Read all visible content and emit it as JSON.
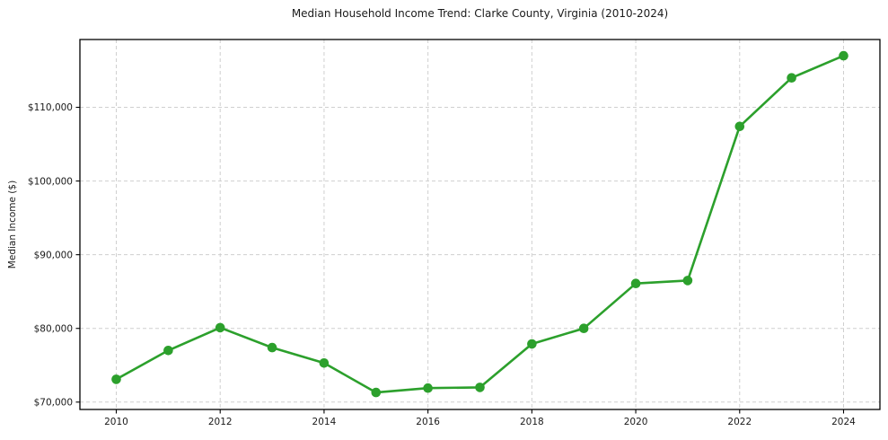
{
  "figure": {
    "background": "#ffffff",
    "text_color": "#1a1a1a"
  },
  "chart_data": {
    "type": "line",
    "title": "Median Household Income Trend: Clarke County, Virginia (2010-2024)",
    "xlabel": "",
    "ylabel": "Median Income ($)",
    "series": [
      {
        "name": "Median household income",
        "color": "#2ca02c",
        "marker": "circle",
        "x": [
          2010,
          2011,
          2012,
          2013,
          2014,
          2015,
          2016,
          2017,
          2018,
          2019,
          2020,
          2021,
          2022,
          2023,
          2024
        ],
        "values": [
          73100,
          77000,
          80100,
          77400,
          75300,
          71300,
          71900,
          72000,
          77900,
          80000,
          86100,
          86500,
          107400,
          114000,
          117000
        ]
      }
    ],
    "xlim": [
      2009.3,
      2024.7
    ],
    "ylim": [
      69000,
      119200
    ],
    "xticks": [
      2010,
      2012,
      2014,
      2016,
      2018,
      2020,
      2022,
      2024
    ],
    "xtick_labels": [
      "2010",
      "2012",
      "2014",
      "2016",
      "2018",
      "2020",
      "2022",
      "2024"
    ],
    "yticks": [
      70000,
      80000,
      90000,
      100000,
      110000
    ],
    "ytick_labels": [
      "$70,000",
      "$80,000",
      "$90,000",
      "$100,000",
      "$110,000"
    ],
    "grid": true,
    "grid_line_style": "dashed",
    "grid_color": "#cfcfcf",
    "axis_color": "#000000",
    "legend_position": "none"
  }
}
